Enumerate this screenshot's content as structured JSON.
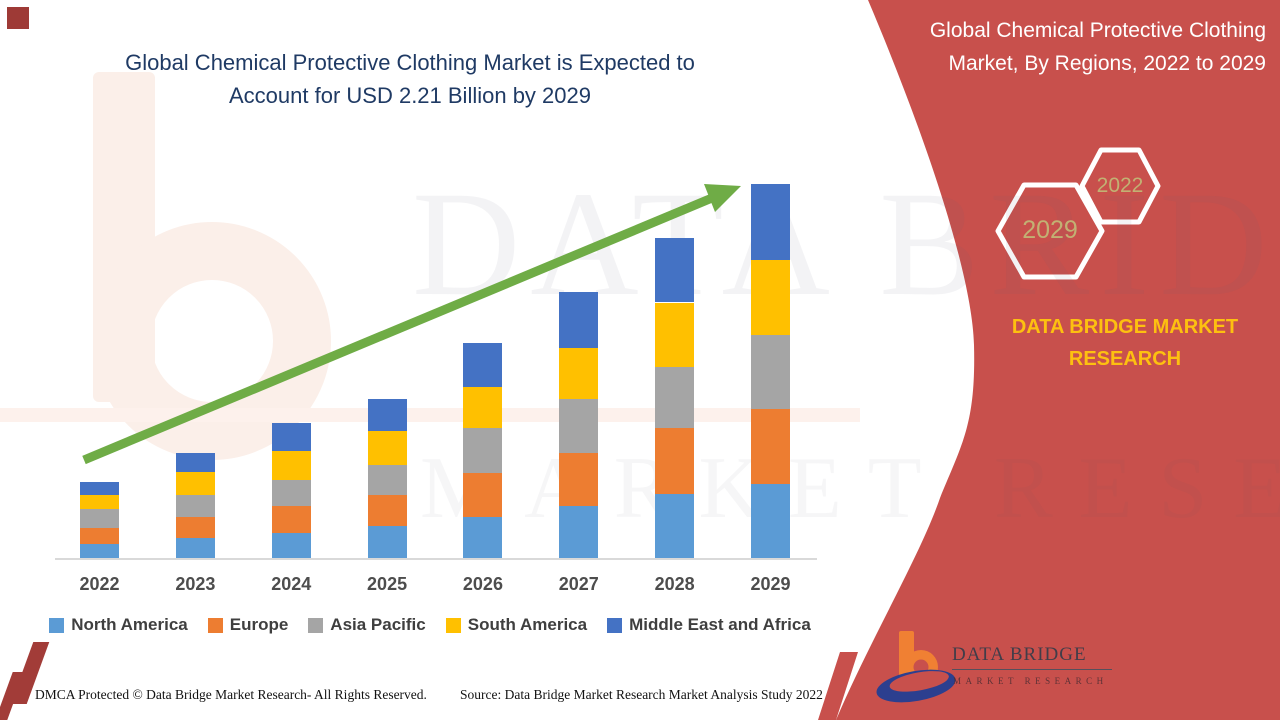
{
  "header": {
    "title_line1": "Global Chemical Protective Clothing Market is Expected to",
    "title_line2": "Account for USD 2.21 Billion by 2029"
  },
  "side_panel": {
    "title_line1": "Global Chemical Protective Clothing",
    "title_line2": "Market, By Regions, 2022 to 2029",
    "hexagons": [
      {
        "label": "2029"
      },
      {
        "label": "2022"
      }
    ],
    "brand_line1": "DATA BRIDGE MARKET",
    "brand_line2": "RESEARCH",
    "panel_color": "#c8504c"
  },
  "chart_data": {
    "type": "bar",
    "stacked": true,
    "title": "Global Chemical Protective Clothing Market is Expected to Account for USD 2.21 Billion by 2029",
    "unit": "USD Billion",
    "categories": [
      "2022",
      "2023",
      "2024",
      "2025",
      "2026",
      "2027",
      "2028",
      "2029"
    ],
    "series": [
      {
        "name": "North America",
        "color": "#5B9BD5",
        "values": [
          0.08,
          0.12,
          0.15,
          0.19,
          0.24,
          0.31,
          0.38,
          0.44
        ]
      },
      {
        "name": "Europe",
        "color": "#ED7D31",
        "values": [
          0.1,
          0.12,
          0.16,
          0.18,
          0.26,
          0.31,
          0.39,
          0.44
        ]
      },
      {
        "name": "Asia Pacific",
        "color": "#A5A5A5",
        "values": [
          0.11,
          0.13,
          0.15,
          0.18,
          0.27,
          0.32,
          0.36,
          0.44
        ]
      },
      {
        "name": "South America",
        "color": "#FFC000",
        "values": [
          0.08,
          0.14,
          0.17,
          0.2,
          0.24,
          0.3,
          0.38,
          0.44
        ]
      },
      {
        "name": "Middle East and Africa",
        "color": "#4472C4",
        "values": [
          0.08,
          0.11,
          0.17,
          0.19,
          0.26,
          0.33,
          0.38,
          0.45
        ]
      }
    ],
    "totals_estimated": [
      0.45,
      0.62,
      0.8,
      0.94,
      1.27,
      1.57,
      1.89,
      2.21
    ],
    "ylim": [
      0,
      2.3
    ],
    "grid": false,
    "axis_labels_shown": "x-only",
    "legend_position": "bottom",
    "trend_arrow": true,
    "trend_arrow_color": "#6FAC46"
  },
  "watermark": {
    "line1": "DATA BRIDGE",
    "line2": "MARKET RESEARCH"
  },
  "logo": {
    "name": "DATA BRIDGE",
    "subtitle": "MARKET RESEARCH"
  },
  "footer": {
    "dmca": "DMCA Protected © Data Bridge Market Research- All Rights Reserved.",
    "source": "Source: Data Bridge Market Research Market Analysis Study 2022"
  },
  "colors": {
    "title_navy": "#1f3a64",
    "panel_red": "#c8504c",
    "brand_yellow": "#fdc010",
    "hex_label_gold": "#c2b173",
    "corner_maroon": "#9e3a36"
  }
}
